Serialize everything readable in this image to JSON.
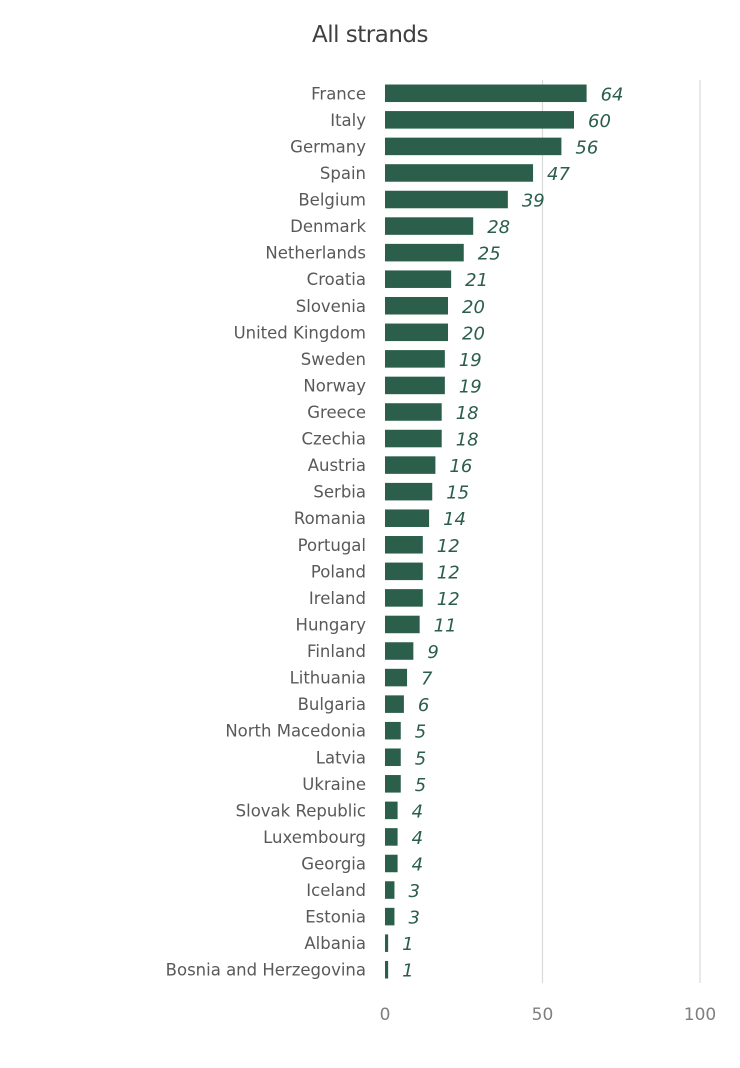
{
  "chart_data": {
    "type": "bar",
    "orientation": "horizontal",
    "title": "All strands",
    "xlabel": "",
    "ylabel": "",
    "xlim": [
      0,
      100
    ],
    "xticks": [
      0,
      50,
      100
    ],
    "grid": true,
    "bar_color": "#2b5e4b",
    "label_color": "#2b5e4b",
    "categories": [
      "France",
      "Italy",
      "Germany",
      "Spain",
      "Belgium",
      "Denmark",
      "Netherlands",
      "Croatia",
      "Slovenia",
      "United Kingdom",
      "Sweden",
      "Norway",
      "Greece",
      "Czechia",
      "Austria",
      "Serbia",
      "Romania",
      "Portugal",
      "Poland",
      "Ireland",
      "Hungary",
      "Finland",
      "Lithuania",
      "Bulgaria",
      "North Macedonia",
      "Latvia",
      "Ukraine",
      "Slovak Republic",
      "Luxembourg",
      "Georgia",
      "Iceland",
      "Estonia",
      "Albania",
      "Bosnia and Herzegovina"
    ],
    "values": [
      64,
      60,
      56,
      47,
      39,
      28,
      25,
      21,
      20,
      20,
      19,
      19,
      18,
      18,
      16,
      15,
      14,
      12,
      12,
      12,
      11,
      9,
      7,
      6,
      5,
      5,
      5,
      4,
      4,
      4,
      3,
      3,
      1,
      1
    ]
  }
}
